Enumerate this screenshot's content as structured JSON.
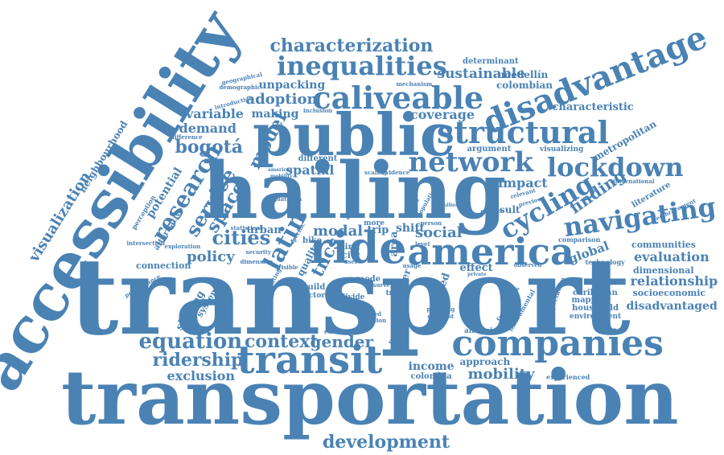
{
  "color": "#4a82b4",
  "background": "#ffffff",
  "words": {
    "transport": "transport",
    "transportation": "transportation",
    "hailing": "hailing",
    "accessibility": "accessibility",
    "public": "public",
    "ride": "ride",
    "america": "america",
    "companies": "companies",
    "transit": "transit",
    "disadvantage": "disadvantage",
    "structural": "structural",
    "caliveable": "caliveable",
    "inequalities": "inequalities",
    "network": "network",
    "lockdown": "lockdown",
    "navigating": "navigating",
    "characterization": "characterization",
    "cycling": "cycling",
    "research": "research",
    "service": "service",
    "cities": "cities",
    "latin": "latin",
    "model": "model",
    "bogota": "bogotá",
    "equation": "equation",
    "context": "context",
    "gender": "gender",
    "ridership": "ridership",
    "development": "development",
    "visualization": "visualization",
    "sustainable": "sustainable",
    "space": "space",
    "policy": "policy",
    "modal": "modal",
    "social": "social",
    "mobility": "mobility",
    "exclusion": "exclusion",
    "adoption": "adoption",
    "coverage": "coverage",
    "demand": "demand",
    "variable": "variable",
    "making": "making",
    "global": "global",
    "evaluation": "evaluation",
    "relationship": "relationship",
    "disadvantaged": "disadvantaged",
    "finding": "finding",
    "impact": "impact",
    "spatial": "spatial",
    "unpacking": "unpacking",
    "medellin": "medellín",
    "colombian": "colombian",
    "characteristic": "characteristic",
    "metropolitan": "metropolitan",
    "neighbourhood": "neighbourhood",
    "income": "income",
    "colombia": "colombia",
    "approach": "approach",
    "tncs": "tncs",
    "urban": "urban",
    "shift": "shift",
    "trip": "trip",
    "effect": "effect",
    "result": "result",
    "connection": "connection",
    "sharing": "sharing",
    "system": "system",
    "potential": "potential",
    "alternative": "alternative",
    "determinant": "determinant",
    "communities": "communities",
    "dimensional": "dimensional",
    "socioeconomic": "socioeconomic",
    "caribbean": "caribbean",
    "mapping": "mapping",
    "household": "household",
    "environment": "environment",
    "literature": "literature",
    "argument": "argument",
    "visualizing": "visualizing",
    "different": "different",
    "quality": "quality",
    "related": "related",
    "paper": "paper",
    "area": "area",
    "city": "city",
    "mode": "mode",
    "link": "link",
    "bike": "bike",
    "build": "build",
    "factor": "factor",
    "inform": "inform",
    "divide": "divide",
    "travel": "travel",
    "analysis": "analysis",
    "experienced": "experienced",
    "technology": "technology",
    "comparison": "comparison",
    "observed": "observed",
    "international": "international",
    "embracement": "embracement",
    "relevant": "relevant",
    "previous": "previous",
    "explore": "explore",
    "level": "level",
    "person": "person",
    "scaling": "scaling",
    "evidence": "evidence",
    "mechanism": "mechanism",
    "geographical": "geographical",
    "demographic": "demographic",
    "introduction": "introduction",
    "inclusion": "inclusion",
    "difference": "difference",
    "perception": "perception",
    "intersection": "intersection",
    "exploration": "exploration",
    "statistical": "statistical",
    "security": "security",
    "dimension": "dimension",
    "visible": "visible",
    "more": "more",
    "framework": "framework",
    "instrumental": "instrumental",
    "interpretation": "interpretation",
    "usage": "usage",
    "survey": "survey",
    "planning": "planning",
    "contrast": "contrast",
    "limited": "limited",
    "decision": "decision",
    "educated": "educated",
    "relation": "relation",
    "performance": "performance",
    "evaluating": "evaluating",
    "specific": "specific",
    "user": "user",
    "stated": "stated",
    "platform": "platform",
    "americas": "americas",
    "mobility_small": "mobility",
    "access": "access",
    "population": "population",
    "private": "private",
    "families": "families"
  }
}
